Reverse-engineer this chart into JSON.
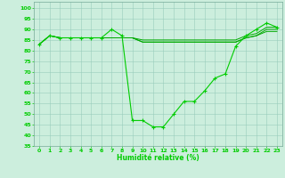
{
  "xlabel": "Humidité relative (%)",
  "bg_color": "#cceedd",
  "grid_color": "#99ccbb",
  "line_color": "#00cc00",
  "line_color2": "#00aa00",
  "xlim": [
    -0.5,
    23.5
  ],
  "ylim": [
    35,
    103
  ],
  "yticks": [
    35,
    40,
    45,
    50,
    55,
    60,
    65,
    70,
    75,
    80,
    85,
    90,
    95,
    100
  ],
  "xticks": [
    0,
    1,
    2,
    3,
    4,
    5,
    6,
    7,
    8,
    9,
    10,
    11,
    12,
    13,
    14,
    15,
    16,
    17,
    18,
    19,
    20,
    21,
    22,
    23
  ],
  "series1": [
    83,
    87,
    86,
    86,
    86,
    86,
    86,
    90,
    87,
    47,
    47,
    44,
    44,
    50,
    56,
    56,
    61,
    67,
    69,
    82,
    87,
    90,
    93,
    91
  ],
  "series2": [
    83,
    87,
    86,
    86,
    86,
    86,
    86,
    86,
    86,
    86,
    85,
    85,
    85,
    85,
    85,
    85,
    85,
    85,
    85,
    85,
    87,
    88,
    91,
    91
  ],
  "series3": [
    83,
    87,
    86,
    86,
    86,
    86,
    86,
    86,
    86,
    86,
    84,
    84,
    84,
    84,
    84,
    84,
    84,
    84,
    84,
    84,
    86,
    87,
    90,
    90
  ],
  "series4": [
    83,
    87,
    86,
    86,
    86,
    86,
    86,
    86,
    86,
    86,
    84,
    84,
    84,
    84,
    84,
    84,
    84,
    84,
    84,
    84,
    86,
    87,
    89,
    89
  ]
}
